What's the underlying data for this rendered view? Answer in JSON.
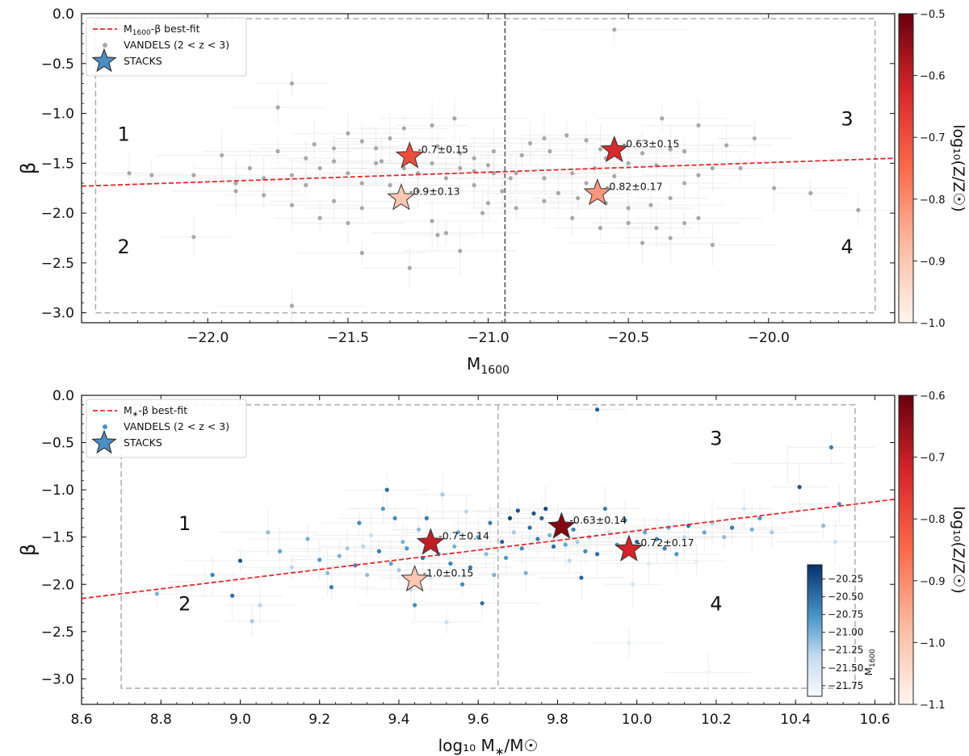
{
  "chart_data": [
    {
      "type": "scatter",
      "panel": "top",
      "xlabel_main": "M",
      "xlabel_sub": "1600",
      "ylabel": "β",
      "xlim": [
        -22.45,
        -19.55
      ],
      "ylim": [
        -3.1,
        0.0
      ],
      "xticks": [
        -22.0,
        -21.5,
        -21.0,
        -20.5,
        -20.0
      ],
      "xtick_labels": [
        "−22.0",
        "−21.5",
        "−21.0",
        "−20.5",
        "−20.0"
      ],
      "yticks": [
        0.0,
        -0.5,
        -1.0,
        -1.5,
        -2.0,
        -2.5,
        -3.0
      ],
      "ytick_labels": [
        "0.0",
        "−0.5",
        "−1.0",
        "−1.5",
        "−2.0",
        "−2.5",
        "−3.0"
      ],
      "fit_line": {
        "label_main": "M",
        "label_sub": "1600",
        "label_rest": "-β best-fit",
        "x": [
          -22.45,
          -19.55
        ],
        "y": [
          -1.73,
          -1.45
        ],
        "color": "#e8262a"
      },
      "divider_x": -20.94,
      "region_box": {
        "x": [
          -22.4,
          -19.62
        ],
        "y": [
          -3.0,
          -0.05
        ]
      },
      "quadrants": [
        {
          "label": "1",
          "x": -22.3,
          "y": -1.2
        },
        {
          "label": "2",
          "x": -22.3,
          "y": -2.33
        },
        {
          "label": "3",
          "x": -19.72,
          "y": -1.05
        },
        {
          "label": "4",
          "x": -19.72,
          "y": -2.33
        }
      ],
      "legend": {
        "line": "M1600-β best-fit",
        "points": "VANDELS (2 < z < 3)",
        "stars": "STACKS"
      },
      "legend_parts": {
        "points_label": "VANDELS (2 < z < 3)",
        "stars_label": "STACKS"
      },
      "stacks": [
        {
          "x": -21.28,
          "y": -1.43,
          "metallicity": -0.7,
          "label": "-0.7±0.15"
        },
        {
          "x": -21.31,
          "y": -1.85,
          "metallicity": -0.9,
          "label": "-0.9±0.13"
        },
        {
          "x": -20.55,
          "y": -1.37,
          "metallicity": -0.63,
          "label": "-0.63±0.15"
        },
        {
          "x": -20.61,
          "y": -1.8,
          "metallicity": -0.82,
          "label": "-0.82±0.17"
        }
      ],
      "colorbar": {
        "label": "log₁₀(Z/Z☉)",
        "range": [
          -1.0,
          -0.5
        ],
        "ticks": [
          -0.5,
          -0.6,
          -0.7,
          -0.8,
          -0.9,
          -1.0
        ],
        "tick_labels": [
          "−0.5",
          "−0.6",
          "−0.7",
          "−0.8",
          "−0.9",
          "−1.0"
        ]
      },
      "points": [
        [
          -21.7,
          -0.7
        ],
        [
          -21.75,
          -0.94
        ],
        [
          -21.5,
          -1.2
        ],
        [
          -21.62,
          -1.31
        ],
        [
          -21.55,
          -1.35
        ],
        [
          -21.45,
          -1.28
        ],
        [
          -21.4,
          -1.35
        ],
        [
          -21.35,
          -1.25
        ],
        [
          -21.18,
          -1.33
        ],
        [
          -21.1,
          -1.4
        ],
        [
          -21.05,
          -1.45
        ],
        [
          -20.98,
          -1.38
        ],
        [
          -21.2,
          -1.5
        ],
        [
          -21.3,
          -1.55
        ],
        [
          -21.4,
          -1.5
        ],
        [
          -21.5,
          -1.6
        ],
        [
          -21.6,
          -1.55
        ],
        [
          -21.7,
          -1.62
        ],
        [
          -21.8,
          -1.65
        ],
        [
          -21.9,
          -1.7
        ],
        [
          -22.05,
          -1.62
        ],
        [
          -22.2,
          -1.62
        ],
        [
          -22.28,
          -1.6
        ],
        [
          -21.95,
          -1.42
        ],
        [
          -21.75,
          -1.38
        ],
        [
          -21.65,
          -1.45
        ],
        [
          -21.55,
          -1.48
        ],
        [
          -21.45,
          -1.7
        ],
        [
          -21.35,
          -1.72
        ],
        [
          -21.25,
          -1.6
        ],
        [
          -21.15,
          -1.65
        ],
        [
          -21.05,
          -1.72
        ],
        [
          -20.98,
          -1.6
        ],
        [
          -21.0,
          -1.52
        ],
        [
          -21.12,
          -1.05
        ],
        [
          -21.2,
          -1.12
        ],
        [
          -21.3,
          -1.15
        ],
        [
          -21.45,
          -1.95
        ],
        [
          -21.55,
          -1.88
        ],
        [
          -21.7,
          -1.92
        ],
        [
          -21.8,
          -1.82
        ],
        [
          -21.6,
          -2.05
        ],
        [
          -21.5,
          -2.1
        ],
        [
          -21.2,
          -2.08
        ],
        [
          -21.15,
          -2.2
        ],
        [
          -21.18,
          -2.22
        ],
        [
          -21.28,
          -2.55
        ],
        [
          -21.1,
          -2.38
        ],
        [
          -21.45,
          -2.4
        ],
        [
          -21.7,
          -2.93
        ],
        [
          -22.05,
          -2.24
        ],
        [
          -21.38,
          -1.48
        ],
        [
          -21.1,
          -1.55
        ],
        [
          -21.0,
          -1.9
        ],
        [
          -20.95,
          -1.78
        ],
        [
          -21.02,
          -2.0
        ],
        [
          -20.9,
          -1.95
        ],
        [
          -20.88,
          -1.42
        ],
        [
          -20.85,
          -1.3
        ],
        [
          -20.8,
          -1.25
        ],
        [
          -20.78,
          -1.38
        ],
        [
          -20.72,
          -1.22
        ],
        [
          -20.65,
          -1.27
        ],
        [
          -20.6,
          -1.36
        ],
        [
          -20.58,
          -1.45
        ],
        [
          -20.5,
          -1.5
        ],
        [
          -20.45,
          -1.4
        ],
        [
          -20.35,
          -1.36
        ],
        [
          -20.3,
          -1.38
        ],
        [
          -20.4,
          -1.52
        ],
        [
          -20.62,
          -1.55
        ],
        [
          -20.7,
          -1.6
        ],
        [
          -20.8,
          -1.65
        ],
        [
          -20.9,
          -1.6
        ],
        [
          -20.75,
          -1.8
        ],
        [
          -20.8,
          -1.88
        ],
        [
          -20.68,
          -1.85
        ],
        [
          -20.58,
          -1.9
        ],
        [
          -20.5,
          -1.95
        ],
        [
          -20.42,
          -1.92
        ],
        [
          -20.35,
          -1.85
        ],
        [
          -20.3,
          -1.7
        ],
        [
          -20.25,
          -1.62
        ],
        [
          -20.2,
          -1.55
        ],
        [
          -20.1,
          -1.55
        ],
        [
          -20.05,
          -1.25
        ],
        [
          -20.15,
          -1.32
        ],
        [
          -20.25,
          -1.12
        ],
        [
          -20.38,
          -1.05
        ],
        [
          -20.55,
          -0.16
        ],
        [
          -20.4,
          -2.15
        ],
        [
          -20.35,
          -2.25
        ],
        [
          -20.3,
          -2.1
        ],
        [
          -20.25,
          -2.05
        ],
        [
          -20.45,
          -2.3
        ],
        [
          -20.5,
          -2.1
        ],
        [
          -20.6,
          -2.15
        ],
        [
          -20.7,
          -2.05
        ],
        [
          -20.2,
          -2.32
        ],
        [
          -19.98,
          -1.75
        ],
        [
          -19.85,
          -1.8
        ],
        [
          -19.68,
          -1.97
        ],
        [
          -21.85,
          -1.55
        ],
        [
          -21.9,
          -1.78
        ],
        [
          -21.65,
          -1.72
        ],
        [
          -21.25,
          -1.78
        ],
        [
          -21.05,
          -1.58
        ],
        [
          -20.92,
          -1.65
        ],
        [
          -20.65,
          -1.7
        ],
        [
          -20.55,
          -1.63
        ]
      ]
    },
    {
      "type": "scatter",
      "panel": "bottom",
      "xlabel_main": "log₁₀ M",
      "xlabel_star": "∗",
      "xlabel_rest": "/M☉",
      "ylabel": "β",
      "xlim": [
        8.6,
        10.65
      ],
      "ylim": [
        -3.27,
        0.0
      ],
      "xticks": [
        8.6,
        8.8,
        9.0,
        9.2,
        9.4,
        9.6,
        9.8,
        10.0,
        10.2,
        10.4,
        10.6
      ],
      "xtick_labels": [
        "8.6",
        "8.8",
        "9.0",
        "9.2",
        "9.4",
        "9.6",
        "9.8",
        "10.0",
        "10.2",
        "10.4",
        "10.6"
      ],
      "yticks": [
        0.0,
        -0.5,
        -1.0,
        -1.5,
        -2.0,
        -2.5,
        -3.0
      ],
      "ytick_labels": [
        "0.0",
        "−0.5",
        "−1.0",
        "−1.5",
        "−2.0",
        "−2.5",
        "−3.0"
      ],
      "fit_line": {
        "label_main": "M",
        "label_sub": "∗",
        "label_rest": "-β best-fit",
        "x": [
          8.6,
          10.65
        ],
        "y": [
          -2.15,
          -1.1
        ],
        "color": "#e8262a"
      },
      "divider_x": 9.65,
      "region_box": {
        "x": [
          8.7,
          10.55
        ],
        "y": [
          -3.1,
          -0.1
        ]
      },
      "quadrants": [
        {
          "label": "1",
          "x": 8.86,
          "y": -1.35
        },
        {
          "label": "2",
          "x": 8.86,
          "y": -2.2
        },
        {
          "label": "3",
          "x": 10.2,
          "y": -0.45
        },
        {
          "label": "4",
          "x": 10.2,
          "y": -2.2
        }
      ],
      "legend": {
        "line": "M∗-β best-fit",
        "points": "VANDELS (2 < z < 3)",
        "stars": "STACKS"
      },
      "legend_parts": {
        "points_label": "VANDELS (2 < z < 3)",
        "stars_label": "STACKS"
      },
      "stacks": [
        {
          "x": 9.48,
          "y": -1.56,
          "metallicity": -0.7,
          "label": "-0.7±0.14"
        },
        {
          "x": 9.44,
          "y": -1.95,
          "metallicity": -1.0,
          "label": "-1.0±0.15"
        },
        {
          "x": 9.81,
          "y": -1.39,
          "metallicity": -0.63,
          "label": "-0.63±0.14"
        },
        {
          "x": 9.98,
          "y": -1.63,
          "metallicity": -0.72,
          "label": "-0.72±0.17"
        }
      ],
      "colorbar": {
        "label": "log₁₀(Z/Z☉)",
        "range": [
          -1.1,
          -0.6
        ],
        "ticks": [
          -0.6,
          -0.7,
          -0.8,
          -0.9,
          -1.0,
          -1.1
        ],
        "tick_labels": [
          "−0.6",
          "−0.7",
          "−0.8",
          "−0.9",
          "−1.0",
          "−1.1"
        ]
      },
      "inset_colorbar": {
        "label": "M1600",
        "label_main": "M",
        "label_sub": "1600",
        "range": [
          -21.9,
          -20.05
        ],
        "ticks": [
          -20.25,
          -20.5,
          -20.75,
          -21.0,
          -21.25,
          -21.5,
          -21.75
        ],
        "tick_labels": [
          "−20.25",
          "−20.50",
          "−20.75",
          "−21.00",
          "−21.25",
          "−21.50",
          "−21.75"
        ]
      },
      "points": [
        [
          8.79,
          -2.1,
          -21.0
        ],
        [
          8.91,
          -1.97,
          -21.8
        ],
        [
          8.93,
          -1.9,
          -20.6
        ],
        [
          8.98,
          -2.12,
          -20.5
        ],
        [
          9.0,
          -1.75,
          -20.3
        ],
        [
          9.03,
          -2.39,
          -21.2
        ],
        [
          9.05,
          -2.22,
          -21.3
        ],
        [
          9.1,
          -1.65,
          -20.9
        ],
        [
          9.13,
          -1.82,
          -21.3
        ],
        [
          9.17,
          -1.52,
          -21.0
        ],
        [
          9.2,
          -1.74,
          -20.8
        ],
        [
          9.22,
          -1.88,
          -21.1
        ],
        [
          9.23,
          -2.03,
          -20.6
        ],
        [
          9.25,
          -1.7,
          -21.0
        ],
        [
          9.27,
          -1.62,
          -21.2
        ],
        [
          9.29,
          -1.8,
          -20.7
        ],
        [
          9.3,
          -1.35,
          -20.7
        ],
        [
          9.31,
          -1.6,
          -21.3
        ],
        [
          9.32,
          -1.9,
          -21.1
        ],
        [
          9.33,
          -1.48,
          -21.4
        ],
        [
          9.35,
          -1.65,
          -20.6
        ],
        [
          9.36,
          -1.2,
          -20.8
        ],
        [
          9.37,
          -1.0,
          -20.5
        ],
        [
          9.38,
          -1.78,
          -20.9
        ],
        [
          9.39,
          -1.3,
          -20.7
        ],
        [
          9.4,
          -1.85,
          -21.2
        ],
        [
          9.41,
          -1.55,
          -21.0
        ],
        [
          9.42,
          -1.62,
          -20.8
        ],
        [
          9.43,
          -2.05,
          -21.3
        ],
        [
          9.44,
          -2.22,
          -20.7
        ],
        [
          9.45,
          -1.42,
          -21.1
        ],
        [
          9.46,
          -1.72,
          -20.5
        ],
        [
          9.47,
          -1.3,
          -20.6
        ],
        [
          9.48,
          -1.93,
          -21.5
        ],
        [
          9.5,
          -1.68,
          -20.7
        ],
        [
          9.51,
          -1.05,
          -21.2
        ],
        [
          9.52,
          -2.4,
          -21.4
        ],
        [
          9.53,
          -1.78,
          -20.6
        ],
        [
          9.54,
          -1.6,
          -21.0
        ],
        [
          9.55,
          -1.45,
          -20.9
        ],
        [
          9.56,
          -2.0,
          -20.7
        ],
        [
          9.57,
          -1.23,
          -21.3
        ],
        [
          9.58,
          -1.82,
          -20.6
        ],
        [
          9.6,
          -1.5,
          -20.8
        ],
        [
          9.61,
          -2.2,
          -20.5
        ],
        [
          9.62,
          -1.68,
          -21.1
        ],
        [
          9.63,
          -1.35,
          -20.6
        ],
        [
          9.64,
          -1.9,
          -21.0
        ],
        [
          9.66,
          -1.55,
          -20.4
        ],
        [
          9.67,
          -1.72,
          -20.8
        ],
        [
          9.68,
          -1.3,
          -20.2
        ],
        [
          9.69,
          -1.45,
          -21.2
        ],
        [
          9.7,
          -1.22,
          -20.3
        ],
        [
          9.71,
          -1.62,
          -20.7
        ],
        [
          9.72,
          -1.88,
          -21.0
        ],
        [
          9.73,
          -1.4,
          -20.5
        ],
        [
          9.74,
          -1.25,
          -20.3
        ],
        [
          9.75,
          -1.52,
          -20.6
        ],
        [
          9.76,
          -1.3,
          -20.4
        ],
        [
          9.77,
          -1.2,
          -20.2
        ],
        [
          9.78,
          -1.48,
          -21.0
        ],
        [
          9.79,
          -1.6,
          -20.5
        ],
        [
          9.8,
          -1.35,
          -20.8
        ],
        [
          9.82,
          -1.58,
          -20.9
        ],
        [
          9.83,
          -1.75,
          -21.3
        ],
        [
          9.84,
          -1.42,
          -20.6
        ],
        [
          9.85,
          -1.55,
          -21.2
        ],
        [
          9.86,
          -1.93,
          -20.4
        ],
        [
          9.87,
          -1.65,
          -20.7
        ],
        [
          9.88,
          -1.5,
          -21.1
        ],
        [
          9.9,
          -1.68,
          -20.5
        ],
        [
          9.92,
          -1.2,
          -20.6
        ],
        [
          9.93,
          -1.45,
          -21.4
        ],
        [
          9.95,
          -1.58,
          -20.8
        ],
        [
          9.97,
          -1.32,
          -20.7
        ],
        [
          9.99,
          -2.0,
          -21.5
        ],
        [
          10.0,
          -1.55,
          -20.4
        ],
        [
          10.02,
          -1.45,
          -20.9
        ],
        [
          10.03,
          -1.78,
          -21.6
        ],
        [
          10.05,
          -1.52,
          -20.7
        ],
        [
          10.07,
          -1.62,
          -20.6
        ],
        [
          10.08,
          -1.4,
          -21.0
        ],
        [
          10.1,
          -1.68,
          -20.8
        ],
        [
          10.12,
          -1.5,
          -21.3
        ],
        [
          10.13,
          -1.38,
          -20.5
        ],
        [
          10.15,
          -1.75,
          -21.7
        ],
        [
          10.17,
          -1.45,
          -20.9
        ],
        [
          10.19,
          -1.35,
          -21.2
        ],
        [
          10.22,
          -1.5,
          -21.1
        ],
        [
          10.24,
          -1.4,
          -20.6
        ],
        [
          10.27,
          -1.2,
          -21.5
        ],
        [
          10.29,
          -1.42,
          -21.0
        ],
        [
          10.31,
          -1.3,
          -20.8
        ],
        [
          10.34,
          -1.45,
          -21.2
        ],
        [
          10.38,
          -0.72,
          -21.8
        ],
        [
          10.41,
          -0.97,
          -20.3
        ],
        [
          10.47,
          -1.38,
          -21.1
        ],
        [
          10.49,
          -0.55,
          -20.6
        ],
        [
          10.51,
          -1.15,
          -20.7
        ],
        [
          10.5,
          -1.55,
          -21.4
        ],
        [
          9.9,
          -0.15,
          -20.4
        ],
        [
          9.98,
          -2.62,
          -21.6
        ],
        [
          10.18,
          -2.93,
          -21.8
        ],
        [
          9.07,
          -1.45,
          -21.1
        ]
      ]
    }
  ]
}
